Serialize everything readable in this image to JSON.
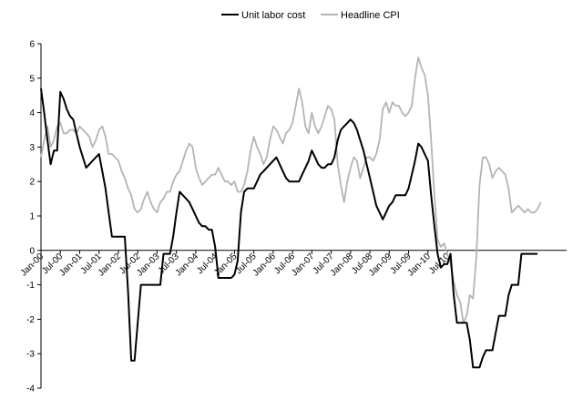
{
  "chart_data": {
    "type": "line",
    "title": "",
    "xlabel": "",
    "ylabel": "",
    "ylim": [
      -4,
      6
    ],
    "yticks": [
      -4,
      -3,
      -2,
      -1,
      0,
      1,
      2,
      3,
      4,
      5,
      6
    ],
    "y_tick_labels": [
      "-4",
      "-3",
      "-2",
      "-1",
      "0",
      "1",
      "2",
      "3",
      "4",
      "5",
      "6"
    ],
    "x_start": "Jan-00",
    "x_tick_labels": [
      "Jan-00",
      "Jul-00",
      "Jan-01",
      "Jul-01",
      "Jan-02",
      "Jul-02",
      "Jan-03",
      "Jul-03",
      "Jan-04",
      "Jul-04",
      "Jan-05",
      "Jul-05",
      "Jan-06",
      "Jul-06",
      "Jan-07",
      "Jul-07",
      "Jan-08",
      "Jul-08",
      "Jan-09",
      "Jul-09",
      "Jan-10",
      "Jul-10"
    ],
    "grid": false,
    "legend_position": "top",
    "series": [
      {
        "name": "Unit labor cost",
        "color": "#000000",
        "values": [
          4.7,
          4.0,
          3.2,
          2.5,
          2.9,
          2.9,
          4.6,
          4.4,
          4.1,
          3.9,
          3.8,
          3.4,
          3.0,
          2.7,
          2.4,
          2.5,
          2.6,
          2.7,
          2.8,
          2.3,
          1.8,
          1.1,
          0.4,
          0.4,
          0.4,
          0.4,
          0.4,
          -1.2,
          -3.2,
          -3.2,
          -2.1,
          -1.0,
          -1.0,
          -1.0,
          -1.0,
          -1.0,
          -1.0,
          -1.0,
          -0.1,
          -0.1,
          -0.1,
          0.4,
          1.1,
          1.7,
          1.6,
          1.5,
          1.4,
          1.2,
          1.0,
          0.8,
          0.7,
          0.7,
          0.6,
          0.6,
          0.1,
          -0.8,
          -0.8,
          -0.8,
          -0.8,
          -0.8,
          -0.7,
          -0.3,
          1.1,
          1.7,
          1.8,
          1.8,
          1.8,
          2.0,
          2.2,
          2.3,
          2.4,
          2.5,
          2.6,
          2.7,
          2.5,
          2.3,
          2.1,
          2.0,
          2.0,
          2.0,
          2.0,
          2.2,
          2.4,
          2.6,
          2.9,
          2.7,
          2.5,
          2.4,
          2.4,
          2.5,
          2.5,
          2.7,
          3.2,
          3.5,
          3.6,
          3.7,
          3.8,
          3.7,
          3.5,
          3.2,
          2.9,
          2.5,
          2.1,
          1.7,
          1.3,
          1.1,
          0.9,
          1.1,
          1.3,
          1.4,
          1.6,
          1.6,
          1.6,
          1.6,
          1.8,
          2.2,
          2.6,
          3.1,
          3.0,
          2.8,
          2.6,
          1.6,
          0.7,
          -0.1,
          -0.5,
          -0.4,
          -0.4,
          -0.1,
          -1.3,
          -2.1,
          -2.1,
          -2.1,
          -2.1,
          -2.6,
          -3.4,
          -3.4,
          -3.4,
          -3.1,
          -2.9,
          -2.9,
          -2.9,
          -2.4,
          -1.9,
          -1.9,
          -1.9,
          -1.3,
          -1.0,
          -1.0,
          -1.0,
          -0.1,
          -0.1,
          -0.1,
          -0.1,
          -0.1,
          -0.1
        ]
      },
      {
        "name": "Headline CPI",
        "color": "#b4b4b4",
        "values": [
          2.7,
          3.2,
          3.6,
          3.0,
          3.2,
          3.6,
          3.7,
          3.4,
          3.4,
          3.5,
          3.5,
          3.4,
          3.6,
          3.5,
          3.4,
          3.3,
          3.0,
          3.2,
          3.5,
          3.6,
          3.3,
          2.8,
          2.8,
          2.7,
          2.6,
          2.3,
          2.1,
          1.8,
          1.6,
          1.2,
          1.1,
          1.2,
          1.5,
          1.7,
          1.4,
          1.2,
          1.1,
          1.4,
          1.5,
          1.7,
          1.7,
          2.0,
          2.2,
          2.3,
          2.6,
          2.9,
          3.1,
          3.0,
          2.4,
          2.1,
          1.9,
          2.0,
          2.1,
          2.2,
          2.2,
          2.4,
          2.2,
          2.0,
          2.0,
          1.9,
          2.0,
          1.7,
          1.7,
          1.9,
          2.3,
          2.9,
          3.3,
          3.0,
          2.8,
          2.5,
          2.7,
          3.2,
          3.6,
          3.5,
          3.3,
          3.1,
          3.4,
          3.5,
          3.7,
          4.2,
          4.7,
          4.3,
          3.6,
          3.4,
          4.0,
          3.6,
          3.4,
          3.6,
          3.9,
          4.2,
          4.1,
          3.8,
          2.5,
          1.9,
          1.4,
          2.0,
          2.4,
          2.7,
          2.6,
          2.1,
          2.4,
          2.7,
          2.7,
          2.6,
          2.8,
          3.2,
          4.1,
          4.3,
          4.0,
          4.3,
          4.2,
          4.2,
          4.0,
          3.9,
          4.0,
          4.2,
          5.0,
          5.6,
          5.3,
          5.1,
          4.5,
          3.2,
          1.6,
          0.3,
          0.1,
          0.2,
          -0.1,
          -0.4,
          -0.9,
          -1.3,
          -1.5,
          -2.1,
          -1.9,
          -1.3,
          -1.4,
          -0.2,
          1.9,
          2.7,
          2.7,
          2.5,
          2.1,
          2.3,
          2.4,
          2.3,
          2.2,
          1.8,
          1.1,
          1.2,
          1.3,
          1.2,
          1.1,
          1.2,
          1.1,
          1.1,
          1.2,
          1.4
        ]
      }
    ]
  }
}
